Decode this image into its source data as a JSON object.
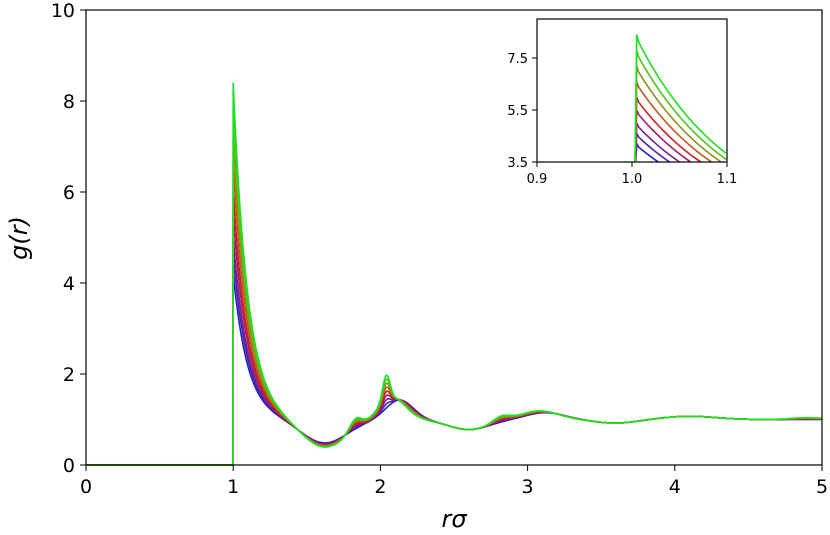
{
  "chart_data": [
    {
      "type": "line",
      "title": "",
      "xlabel": "rσ",
      "ylabel": "g(r)",
      "xlim": [
        0,
        5
      ],
      "ylim": [
        0,
        10
      ],
      "xticks": [
        0,
        1,
        2,
        3,
        4,
        5
      ],
      "xtick_labels": [
        "0",
        "1",
        "2",
        "3",
        "4",
        "5"
      ],
      "yticks": [
        0,
        2,
        4,
        6,
        8,
        10
      ],
      "ytick_labels": [
        "0",
        "2",
        "4",
        "6",
        "8",
        "10"
      ],
      "grid": false,
      "legend": "none",
      "series": [
        {
          "color": "#1f1fd6",
          "peak": 4.2,
          "shift": 0.0
        },
        {
          "color": "#4b1fb0",
          "peak": 4.6,
          "shift": 0.005
        },
        {
          "color": "#7a1f8a",
          "peak": 5.0,
          "shift": 0.01
        },
        {
          "color": "#a51f5a",
          "peak": 5.5,
          "shift": 0.015
        },
        {
          "color": "#cc1f1f",
          "peak": 6.0,
          "shift": 0.02
        },
        {
          "color": "#c2551a",
          "peak": 6.6,
          "shift": 0.025
        },
        {
          "color": "#8f8f1a",
          "peak": 7.2,
          "shift": 0.03
        },
        {
          "color": "#4fc41a",
          "peak": 7.8,
          "shift": 0.035
        },
        {
          "color": "#1fe01f",
          "peak": 8.4,
          "shift": 0.04
        }
      ]
    },
    {
      "type": "line",
      "title": "",
      "xlim": [
        0.9,
        1.1
      ],
      "ylim": [
        3.5,
        9.0
      ],
      "xticks": [
        0.9,
        1.0,
        1.1
      ],
      "xtick_labels": [
        "0.9",
        "1.0",
        "1.1"
      ],
      "yticks": [
        3.5,
        5.5,
        7.5
      ],
      "ytick_labels": [
        "3.5",
        "5.5",
        "7.5"
      ],
      "grid": false,
      "legend": "none"
    }
  ]
}
